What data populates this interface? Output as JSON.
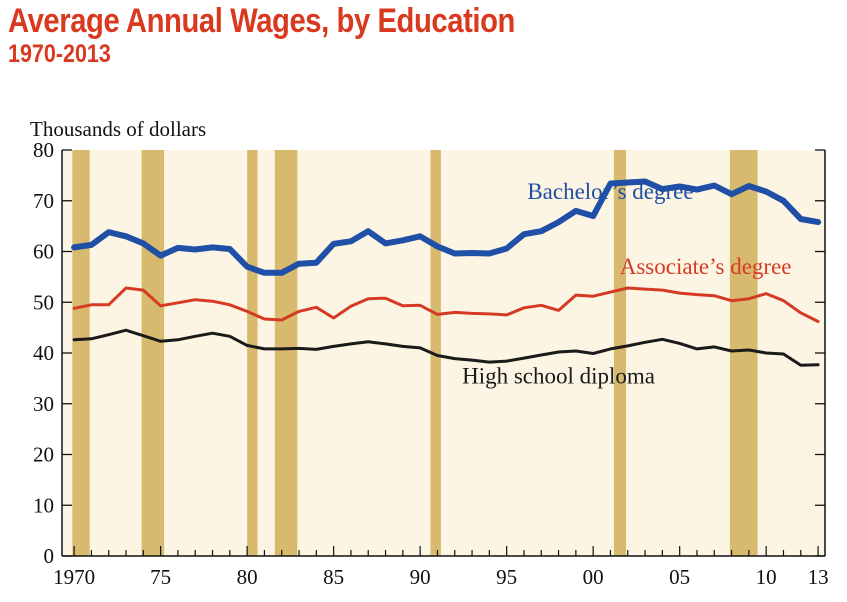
{
  "header": {
    "title": "Average Annual Wages, by Education",
    "subtitle": "1970-2013",
    "units_label": "Thousands of dollars"
  },
  "chart_data": {
    "type": "line",
    "title": "Average Annual Wages, by Education",
    "subtitle": "1970-2013",
    "ylabel": "Thousands of dollars",
    "xlim": [
      1970,
      2013
    ],
    "ylim": [
      0,
      80
    ],
    "y_ticks": [
      0,
      10,
      20,
      30,
      40,
      50,
      60,
      70,
      80
    ],
    "x_ticks": [
      {
        "year": 1970,
        "label": "1970"
      },
      {
        "year": 1975,
        "label": "75"
      },
      {
        "year": 1980,
        "label": "80"
      },
      {
        "year": 1985,
        "label": "85"
      },
      {
        "year": 1990,
        "label": "90"
      },
      {
        "year": 1995,
        "label": "95"
      },
      {
        "year": 2000,
        "label": "00"
      },
      {
        "year": 2005,
        "label": "05"
      },
      {
        "year": 2010,
        "label": "10"
      },
      {
        "year": 2013,
        "label": "13"
      }
    ],
    "recessions": [
      [
        1969.9,
        1970.9
      ],
      [
        1973.9,
        1975.2
      ],
      [
        1980.0,
        1980.6
      ],
      [
        1981.6,
        1982.9
      ],
      [
        1990.6,
        1991.2
      ],
      [
        2001.2,
        2001.9
      ],
      [
        2007.9,
        2009.5
      ]
    ],
    "x": [
      1970,
      1971,
      1972,
      1973,
      1974,
      1975,
      1976,
      1977,
      1978,
      1979,
      1980,
      1981,
      1982,
      1983,
      1984,
      1985,
      1986,
      1987,
      1988,
      1989,
      1990,
      1991,
      1992,
      1993,
      1994,
      1995,
      1996,
      1997,
      1998,
      1999,
      2000,
      2001,
      2002,
      2003,
      2004,
      2005,
      2006,
      2007,
      2008,
      2009,
      2010,
      2011,
      2012,
      2013
    ],
    "series": [
      {
        "name": "Bachelor’s degree",
        "color": "#1f4fa6",
        "line_width": 6,
        "values": [
          60.8,
          61.3,
          63.8,
          63.0,
          61.6,
          59.2,
          60.7,
          60.4,
          60.8,
          60.5,
          57.0,
          55.8,
          55.8,
          57.6,
          57.8,
          61.5,
          62.0,
          64.0,
          61.6,
          62.2,
          63.0,
          61.0,
          59.6,
          59.7,
          59.6,
          60.6,
          63.4,
          64.0,
          65.8,
          68.0,
          67.0,
          73.4,
          73.6,
          73.8,
          72.3,
          72.8,
          72.2,
          73.0,
          71.3,
          72.9,
          71.8,
          70.0,
          66.4,
          65.8
        ],
        "label_year": 2001,
        "label_value": 70.3
      },
      {
        "name": "Associate’s degree",
        "color": "#d63a24",
        "line_width": 3,
        "values": [
          48.8,
          49.5,
          49.5,
          52.8,
          52.4,
          49.3,
          49.9,
          50.5,
          50.2,
          49.5,
          48.2,
          46.7,
          46.5,
          48.2,
          49.0,
          46.9,
          49.2,
          50.7,
          50.8,
          49.3,
          49.4,
          47.6,
          48.0,
          47.8,
          47.7,
          47.5,
          48.9,
          49.4,
          48.4,
          51.4,
          51.2,
          52.0,
          52.8,
          52.6,
          52.4,
          51.8,
          51.5,
          51.3,
          50.3,
          50.7,
          51.7,
          50.3,
          47.9,
          46.2
        ],
        "label_year": 2006.5,
        "label_value": 55.6
      },
      {
        "name": "High school diploma",
        "color": "#1a1a1a",
        "line_width": 3,
        "values": [
          42.6,
          42.8,
          43.6,
          44.5,
          43.4,
          42.3,
          42.6,
          43.3,
          43.9,
          43.3,
          41.5,
          40.8,
          40.8,
          40.9,
          40.7,
          41.3,
          41.8,
          42.2,
          41.8,
          41.3,
          41.0,
          39.5,
          38.9,
          38.6,
          38.2,
          38.4,
          39.0,
          39.6,
          40.2,
          40.4,
          39.9,
          40.8,
          41.4,
          42.1,
          42.7,
          41.9,
          40.8,
          41.2,
          40.4,
          40.6,
          40.0,
          39.8,
          37.6,
          37.7
        ],
        "label_year": 1998,
        "label_value": 34.0
      }
    ],
    "grid": false,
    "background_color": "#fcf5e3",
    "recession_color": "#d8ba6e"
  }
}
